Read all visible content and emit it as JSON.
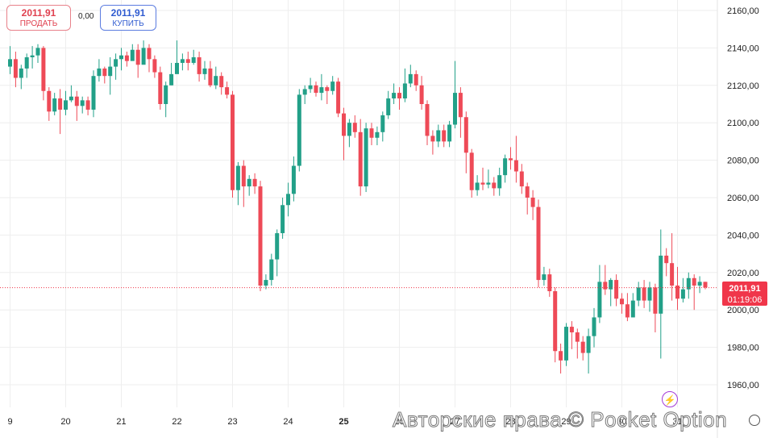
{
  "quotes": {
    "sell_price": "2011,91",
    "sell_label": "ПРОДАТЬ",
    "spread": "0,00",
    "buy_price": "2011,91",
    "buy_label": "КУПИТЬ"
  },
  "current_price": {
    "value": "2011,91",
    "timer": "01:19:06"
  },
  "watermark": "Авторские права © Pocket Option",
  "icons": [
    "lightning-icon",
    "settings-icon"
  ],
  "colors": {
    "up": "#22a088",
    "down": "#ee4a57",
    "price_tag": "#f0364a",
    "grid": "#eeeeee",
    "sell": "#e0404f",
    "buy": "#2f5bd0"
  },
  "chart_data": {
    "type": "candlestick",
    "x_tick_labels": [
      "9",
      "20",
      "21",
      "22",
      "23",
      "24",
      "25",
      "26",
      "27",
      "28",
      "29",
      "30",
      "31"
    ],
    "y_tick_labels": [
      "1960,00",
      "1980,00",
      "2000,00",
      "2020,00",
      "2040,00",
      "2060,00",
      "2080,00",
      "2100,00",
      "2120,00",
      "2140,00",
      "2160,00"
    ],
    "y_ticks": [
      1960,
      1980,
      2000,
      2020,
      2040,
      2060,
      2080,
      2100,
      2120,
      2140,
      2160
    ],
    "ylim": [
      1952,
      2163
    ],
    "x_tick_index": [
      0,
      10,
      20,
      30,
      40,
      50,
      60,
      70,
      80,
      90,
      100,
      110,
      120
    ],
    "current_price_value": 2011.91,
    "candles": [
      [
        2130,
        2134,
        2141,
        2126
      ],
      [
        2134,
        2124,
        2138,
        2119
      ],
      [
        2124,
        2129,
        2131,
        2118
      ],
      [
        2129,
        2135,
        2137,
        2124
      ],
      [
        2135,
        2136,
        2141,
        2129
      ],
      [
        2136,
        2140,
        2142,
        2132
      ],
      [
        2140,
        2117,
        2141,
        2112
      ],
      [
        2117,
        2106,
        2119,
        2101
      ],
      [
        2106,
        2113,
        2116,
        2104
      ],
      [
        2113,
        2107,
        2118,
        2094
      ],
      [
        2107,
        2112,
        2117,
        2104
      ],
      [
        2112,
        2114,
        2120,
        2111
      ],
      [
        2114,
        2109,
        2117,
        2101
      ],
      [
        2109,
        2112,
        2114,
        2105
      ],
      [
        2112,
        2107,
        2114,
        2104
      ],
      [
        2107,
        2125,
        2128,
        2103
      ],
      [
        2125,
        2129,
        2134,
        2122
      ],
      [
        2129,
        2125,
        2130,
        2121
      ],
      [
        2125,
        2130,
        2135,
        2115
      ],
      [
        2130,
        2134,
        2137,
        2123
      ],
      [
        2134,
        2136,
        2140,
        2128
      ],
      [
        2136,
        2133,
        2138,
        2130
      ],
      [
        2133,
        2139,
        2142,
        2134
      ],
      [
        2139,
        2131,
        2142,
        2124
      ],
      [
        2131,
        2140,
        2144,
        2133
      ],
      [
        2140,
        2134,
        2142,
        2127
      ],
      [
        2134,
        2127,
        2136,
        2124
      ],
      [
        2127,
        2110,
        2130,
        2107
      ],
      [
        2110,
        2120,
        2122,
        2103
      ],
      [
        2120,
        2126,
        2132,
        2120
      ],
      [
        2126,
        2132,
        2144,
        2127
      ],
      [
        2132,
        2134,
        2137,
        2128
      ],
      [
        2134,
        2132,
        2138,
        2128
      ],
      [
        2132,
        2135,
        2139,
        2131
      ],
      [
        2135,
        2126,
        2138,
        2122
      ],
      [
        2126,
        2129,
        2133,
        2123
      ],
      [
        2129,
        2120,
        2133,
        2119
      ],
      [
        2120,
        2125,
        2130,
        2118
      ],
      [
        2125,
        2119,
        2127,
        2115
      ],
      [
        2119,
        2115,
        2122,
        2113
      ],
      [
        2115,
        2064,
        2117,
        2060
      ],
      [
        2064,
        2077,
        2079,
        2056
      ],
      [
        2077,
        2066,
        2080,
        2055
      ],
      [
        2066,
        2070,
        2072,
        2061
      ],
      [
        2070,
        2066,
        2073,
        2062
      ],
      [
        2066,
        2013,
        2069,
        2010
      ],
      [
        2013,
        2016,
        2019,
        2011
      ],
      [
        2016,
        2027,
        2030,
        2013
      ],
      [
        2027,
        2041,
        2043,
        2018
      ],
      [
        2041,
        2056,
        2060,
        2038
      ],
      [
        2056,
        2062,
        2068,
        2050
      ],
      [
        2062,
        2077,
        2082,
        2058
      ],
      [
        2077,
        2115,
        2118,
        2074
      ],
      [
        2115,
        2118,
        2120,
        2110
      ],
      [
        2118,
        2120,
        2124,
        2116
      ],
      [
        2120,
        2116,
        2122,
        2114
      ],
      [
        2116,
        2119,
        2126,
        2112
      ],
      [
        2119,
        2117,
        2120,
        2110
      ],
      [
        2117,
        2122,
        2125,
        2115
      ],
      [
        2122,
        2105,
        2124,
        2103
      ],
      [
        2105,
        2093,
        2108,
        2080
      ],
      [
        2093,
        2100,
        2102,
        2087
      ],
      [
        2100,
        2095,
        2104,
        2092
      ],
      [
        2095,
        2066,
        2102,
        2061
      ],
      [
        2066,
        2097,
        2100,
        2063
      ],
      [
        2097,
        2092,
        2100,
        2088
      ],
      [
        2092,
        2095,
        2098,
        2088
      ],
      [
        2095,
        2104,
        2106,
        2090
      ],
      [
        2104,
        2113,
        2117,
        2102
      ],
      [
        2113,
        2116,
        2121,
        2110
      ],
      [
        2116,
        2113,
        2119,
        2107
      ],
      [
        2113,
        2121,
        2129,
        2111
      ],
      [
        2121,
        2126,
        2131,
        2119
      ],
      [
        2126,
        2120,
        2128,
        2117
      ],
      [
        2120,
        2110,
        2125,
        2107
      ],
      [
        2110,
        2093,
        2112,
        2088
      ],
      [
        2093,
        2090,
        2096,
        2083
      ],
      [
        2090,
        2096,
        2099,
        2087
      ],
      [
        2096,
        2090,
        2099,
        2087
      ],
      [
        2090,
        2099,
        2101,
        2087
      ],
      [
        2099,
        2116,
        2133,
        2097
      ],
      [
        2116,
        2103,
        2119,
        2092
      ],
      [
        2103,
        2084,
        2106,
        2073
      ],
      [
        2084,
        2064,
        2086,
        2060
      ],
      [
        2064,
        2068,
        2072,
        2061
      ],
      [
        2068,
        2067,
        2076,
        2064
      ],
      [
        2067,
        2068,
        2075,
        2065
      ],
      [
        2068,
        2065,
        2071,
        2061
      ],
      [
        2065,
        2072,
        2076,
        2061
      ],
      [
        2072,
        2081,
        2083,
        2068
      ],
      [
        2081,
        2080,
        2087,
        2075
      ],
      [
        2080,
        2074,
        2093,
        2068
      ],
      [
        2074,
        2066,
        2078,
        2062
      ],
      [
        2066,
        2060,
        2068,
        2051
      ],
      [
        2060,
        2055,
        2064,
        2048
      ],
      [
        2055,
        2016,
        2059,
        2012
      ],
      [
        2016,
        2019,
        2023,
        2013
      ],
      [
        2019,
        2010,
        2022,
        2007
      ],
      [
        2010,
        1978,
        2012,
        1972
      ],
      [
        1978,
        1973,
        1982,
        1966
      ],
      [
        1973,
        1991,
        1993,
        1970
      ],
      [
        1991,
        1988,
        1994,
        1979
      ],
      [
        1988,
        1983,
        1990,
        1974
      ],
      [
        1983,
        1977,
        1986,
        1973
      ],
      [
        1977,
        1986,
        1990,
        1966
      ],
      [
        1986,
        1996,
        2001,
        1980
      ],
      [
        1996,
        2015,
        2024,
        1993
      ],
      [
        2015,
        2011,
        2024,
        2008
      ],
      [
        2011,
        2016,
        2017,
        2002
      ],
      [
        2016,
        2006,
        2019,
        2002
      ],
      [
        2006,
        2003,
        2009,
        1998
      ],
      [
        2003,
        1996,
        2009,
        1994
      ],
      [
        1996,
        2005,
        2009,
        1996
      ],
      [
        2005,
        2012,
        2015,
        2002
      ],
      [
        2012,
        2005,
        2016,
        2001
      ],
      [
        2005,
        2012,
        2015,
        1999
      ],
      [
        2012,
        1998,
        2014,
        1988
      ],
      [
        1998,
        2029,
        2043,
        1974
      ],
      [
        2029,
        2025,
        2033,
        2018
      ],
      [
        2025,
        2013,
        2041,
        2005
      ],
      [
        2013,
        2006,
        2023,
        2000
      ],
      [
        2006,
        2011,
        2017,
        2004
      ],
      [
        2011,
        2017,
        2020,
        2006
      ],
      [
        2017,
        2013,
        2019,
        2000
      ],
      [
        2013,
        2015,
        2018,
        2009
      ],
      [
        2015,
        2012,
        2015,
        2011
      ]
    ]
  }
}
